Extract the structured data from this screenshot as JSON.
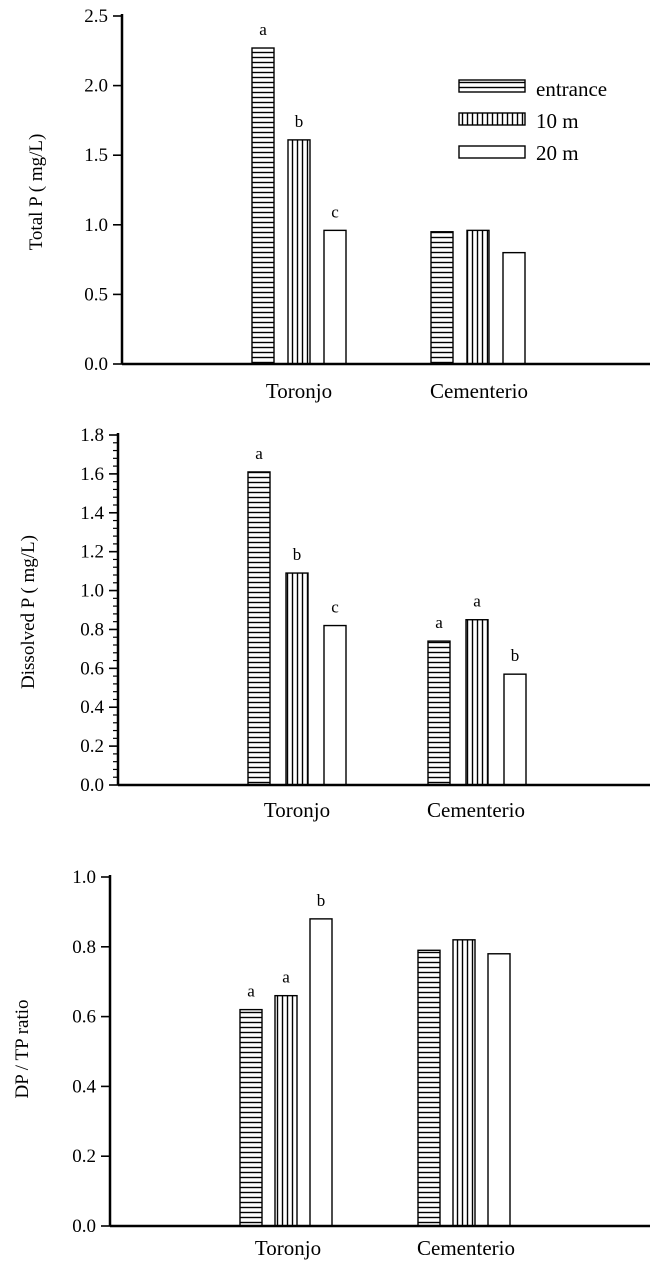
{
  "legend": [
    {
      "name": "entrance",
      "pattern": "horizontal-stripes"
    },
    {
      "name": "10 m",
      "pattern": "vertical-stripes"
    },
    {
      "name": "20 m",
      "pattern": "blank"
    }
  ],
  "chart_data": [
    {
      "type": "bar",
      "ylabel": "Total P ( mg/L)",
      "ylim": [
        0,
        2.5
      ],
      "yticks": [
        "0.0",
        "0.5",
        "1.0",
        "1.5",
        "2.0",
        "2.5"
      ],
      "categories": [
        "Toronjo",
        "Cementerio"
      ],
      "series": [
        {
          "name": "entrance",
          "values": [
            2.27,
            0.95
          ]
        },
        {
          "name": "10 m",
          "values": [
            1.61,
            0.96
          ]
        },
        {
          "name": "20 m",
          "values": [
            0.96,
            0.8
          ]
        }
      ],
      "annotations": [
        [
          "a",
          "b",
          "c"
        ],
        [
          "",
          "",
          ""
        ]
      ],
      "legend_position": "top-right"
    },
    {
      "type": "bar",
      "ylabel": "Dissolved P ( mg/L)",
      "ylim": [
        0,
        1.8
      ],
      "yticks": [
        "0.0",
        "0.2",
        "0.4",
        "0.6",
        "0.8",
        "1.0",
        "1.2",
        "1.4",
        "1.6",
        "1.8"
      ],
      "categories": [
        "Toronjo",
        "Cementerio"
      ],
      "series": [
        {
          "name": "entrance",
          "values": [
            1.61,
            0.74
          ]
        },
        {
          "name": "10 m",
          "values": [
            1.09,
            0.85
          ]
        },
        {
          "name": "20 m",
          "values": [
            0.82,
            0.57
          ]
        }
      ],
      "annotations": [
        [
          "a",
          "b",
          "c"
        ],
        [
          "a",
          "a",
          "b"
        ]
      ]
    },
    {
      "type": "bar",
      "ylabel": "DP / TP ratio",
      "ylim": [
        0,
        1.0
      ],
      "yticks": [
        "0.0",
        "0.2",
        "0.4",
        "0.6",
        "0.8",
        "1.0"
      ],
      "categories": [
        "Toronjo",
        "Cementerio"
      ],
      "series": [
        {
          "name": "entrance",
          "values": [
            0.62,
            0.79
          ]
        },
        {
          "name": "10 m",
          "values": [
            0.66,
            0.82
          ]
        },
        {
          "name": "20 m",
          "values": [
            0.88,
            0.78
          ]
        }
      ],
      "annotations": [
        [
          "a",
          "a",
          "b"
        ],
        [
          "",
          "",
          ""
        ]
      ]
    }
  ]
}
